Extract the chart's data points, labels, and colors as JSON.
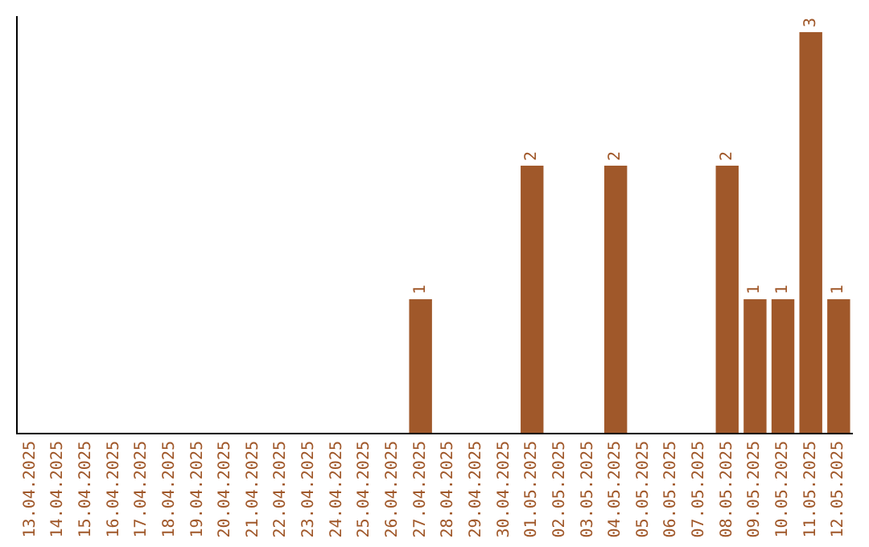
{
  "chart_data": {
    "type": "bar",
    "categories": [
      "13.04.2025",
      "14.04.2025",
      "15.04.2025",
      "16.04.2025",
      "17.04.2025",
      "18.04.2025",
      "19.04.2025",
      "20.04.2025",
      "21.04.2025",
      "22.04.2025",
      "23.04.2025",
      "24.04.2025",
      "25.04.2025",
      "26.04.2025",
      "27.04.2025",
      "28.04.2025",
      "29.04.2025",
      "30.04.2025",
      "01.05.2025",
      "02.05.2025",
      "03.05.2025",
      "04.05.2025",
      "05.05.2025",
      "06.05.2025",
      "07.05.2025",
      "08.05.2025",
      "09.05.2025",
      "10.05.2025",
      "11.05.2025",
      "12.05.2025"
    ],
    "values": [
      null,
      null,
      null,
      null,
      null,
      null,
      null,
      null,
      null,
      null,
      null,
      null,
      null,
      null,
      1,
      null,
      null,
      null,
      2,
      null,
      null,
      2,
      null,
      null,
      null,
      2,
      1,
      1,
      3,
      1
    ],
    "value_labels": [
      null,
      null,
      null,
      null,
      null,
      null,
      null,
      null,
      null,
      null,
      null,
      null,
      null,
      null,
      "1",
      null,
      null,
      null,
      "2",
      null,
      null,
      "2",
      null,
      null,
      null,
      "2",
      "1",
      "1",
      "3",
      "1"
    ],
    "color": "#a0582a"
  }
}
